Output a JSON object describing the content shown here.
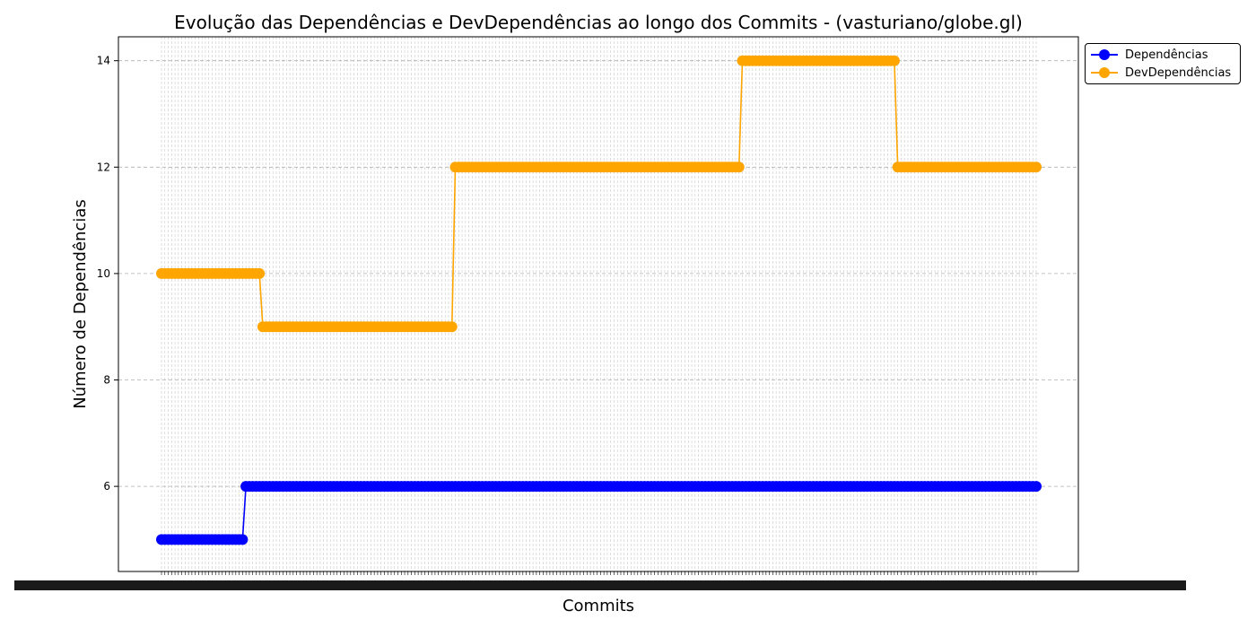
{
  "chart_data": {
    "type": "line",
    "title": "Evolução das Dependências e DevDependências ao longo dos Commits - (vasturiano/globe.gl)",
    "xlabel": "Commits",
    "ylabel": "Número de Dependências",
    "ylim": [
      4.4,
      14.45
    ],
    "yticks": [
      6,
      8,
      10,
      12,
      14
    ],
    "grid": true,
    "legend_position": "top-right outside",
    "commit_count": 260,
    "series": [
      {
        "name": "Dependências",
        "color": "#0000ff",
        "segments": [
          {
            "from_index": 0,
            "to_index": 24,
            "value": 5
          },
          {
            "from_index": 25,
            "to_index": 259,
            "value": 6
          }
        ]
      },
      {
        "name": "DevDependências",
        "color": "#ffa500",
        "segments": [
          {
            "from_index": 0,
            "to_index": 29,
            "value": 10
          },
          {
            "from_index": 30,
            "to_index": 86,
            "value": 9
          },
          {
            "from_index": 87,
            "to_index": 171,
            "value": 12
          },
          {
            "from_index": 172,
            "to_index": 217,
            "value": 14
          },
          {
            "from_index": 218,
            "to_index": 259,
            "value": 12
          }
        ]
      }
    ]
  }
}
